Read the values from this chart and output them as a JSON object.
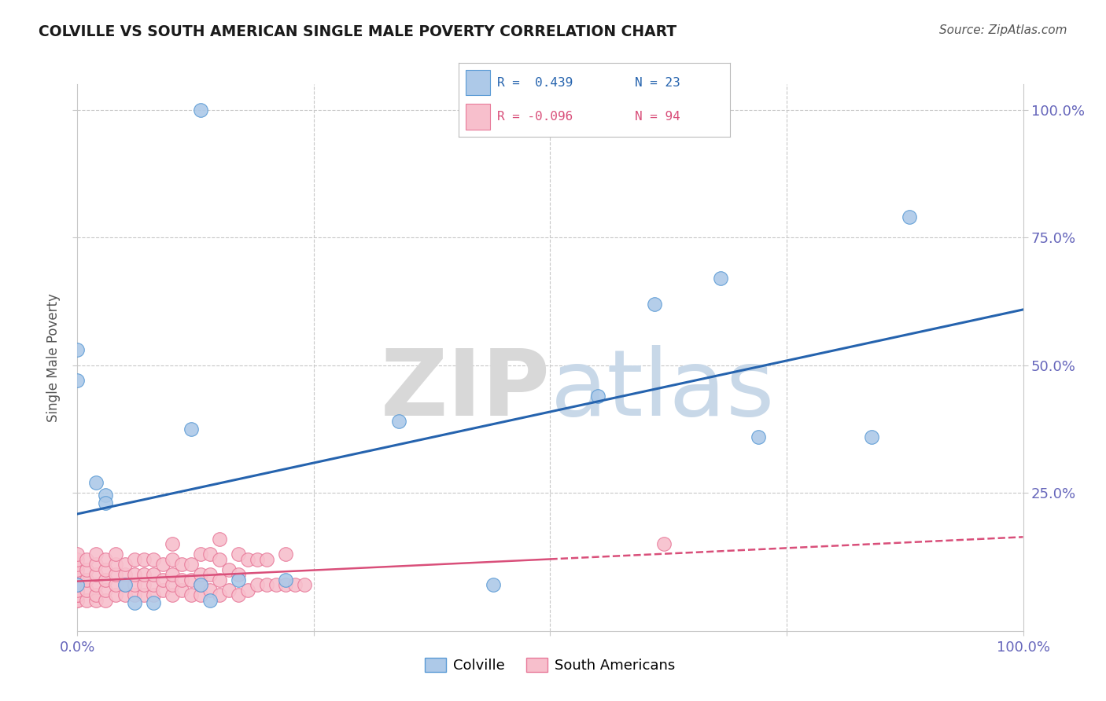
{
  "title": "COLVILLE VS SOUTH AMERICAN SINGLE MALE POVERTY CORRELATION CHART",
  "source_text": "Source: ZipAtlas.com",
  "ylabel": "Single Male Poverty",
  "colville_scatter_color": "#adc9e8",
  "colville_edge_color": "#5b9bd5",
  "colville_line_color": "#2563ae",
  "sa_scatter_color": "#f7bfcc",
  "sa_edge_color": "#e87a9a",
  "sa_line_color": "#d94f7a",
  "background_color": "#ffffff",
  "grid_color": "#c8c8c8",
  "watermark_color": "#eaeaea",
  "colville_x": [
    0.13,
    0.0,
    0.0,
    0.0,
    0.02,
    0.03,
    0.03,
    0.06,
    0.08,
    0.12,
    0.13,
    0.14,
    0.17,
    0.22,
    0.34,
    0.44,
    0.55,
    0.61,
    0.68,
    0.72,
    0.84,
    0.88,
    0.05
  ],
  "colville_y": [
    1.0,
    0.53,
    0.47,
    0.07,
    0.27,
    0.245,
    0.23,
    0.035,
    0.035,
    0.375,
    0.07,
    0.04,
    0.08,
    0.08,
    0.39,
    0.07,
    0.44,
    0.62,
    0.67,
    0.36,
    0.36,
    0.79,
    0.07
  ],
  "sa_x": [
    0.0,
    0.0,
    0.0,
    0.0,
    0.0,
    0.0,
    0.0,
    0.0,
    0.0,
    0.0,
    0.0,
    0.0,
    0.0,
    0.0,
    0.0,
    0.01,
    0.01,
    0.01,
    0.01,
    0.01,
    0.02,
    0.02,
    0.02,
    0.02,
    0.02,
    0.02,
    0.03,
    0.03,
    0.03,
    0.03,
    0.03,
    0.04,
    0.04,
    0.04,
    0.04,
    0.04,
    0.05,
    0.05,
    0.05,
    0.05,
    0.06,
    0.06,
    0.06,
    0.06,
    0.07,
    0.07,
    0.07,
    0.07,
    0.08,
    0.08,
    0.08,
    0.08,
    0.09,
    0.09,
    0.09,
    0.1,
    0.1,
    0.1,
    0.1,
    0.1,
    0.11,
    0.11,
    0.11,
    0.12,
    0.12,
    0.12,
    0.13,
    0.13,
    0.13,
    0.13,
    0.14,
    0.14,
    0.14,
    0.15,
    0.15,
    0.15,
    0.15,
    0.16,
    0.16,
    0.17,
    0.17,
    0.17,
    0.18,
    0.18,
    0.19,
    0.19,
    0.2,
    0.2,
    0.21,
    0.22,
    0.22,
    0.23,
    0.24,
    0.62
  ],
  "sa_y": [
    0.04,
    0.04,
    0.05,
    0.05,
    0.06,
    0.07,
    0.08,
    0.09,
    0.1,
    0.11,
    0.12,
    0.13,
    0.05,
    0.06,
    0.07,
    0.04,
    0.06,
    0.08,
    0.1,
    0.12,
    0.04,
    0.05,
    0.07,
    0.09,
    0.11,
    0.13,
    0.04,
    0.06,
    0.08,
    0.1,
    0.12,
    0.05,
    0.07,
    0.09,
    0.11,
    0.13,
    0.05,
    0.07,
    0.09,
    0.11,
    0.05,
    0.07,
    0.09,
    0.12,
    0.05,
    0.07,
    0.09,
    0.12,
    0.05,
    0.07,
    0.09,
    0.12,
    0.06,
    0.08,
    0.11,
    0.05,
    0.07,
    0.09,
    0.12,
    0.15,
    0.06,
    0.08,
    0.11,
    0.05,
    0.08,
    0.11,
    0.05,
    0.07,
    0.09,
    0.13,
    0.06,
    0.09,
    0.13,
    0.05,
    0.08,
    0.12,
    0.16,
    0.06,
    0.1,
    0.05,
    0.09,
    0.13,
    0.06,
    0.12,
    0.07,
    0.12,
    0.07,
    0.12,
    0.07,
    0.07,
    0.13,
    0.07,
    0.07,
    0.15
  ],
  "xlim": [
    0.0,
    1.0
  ],
  "ylim": [
    -0.02,
    1.05
  ],
  "xtick_vals": [
    0.0,
    0.25,
    0.5,
    0.75,
    1.0
  ],
  "xtick_labels": [
    "0.0%",
    "",
    "",
    "",
    "100.0%"
  ],
  "ytick_right_vals": [
    0.25,
    0.5,
    0.75,
    1.0
  ],
  "ytick_right_labels": [
    "25.0%",
    "50.0%",
    "75.0%",
    "100.0%"
  ],
  "tick_color": "#6666bb",
  "legend_colville_label": "Colville",
  "legend_sa_label": "South Americans"
}
